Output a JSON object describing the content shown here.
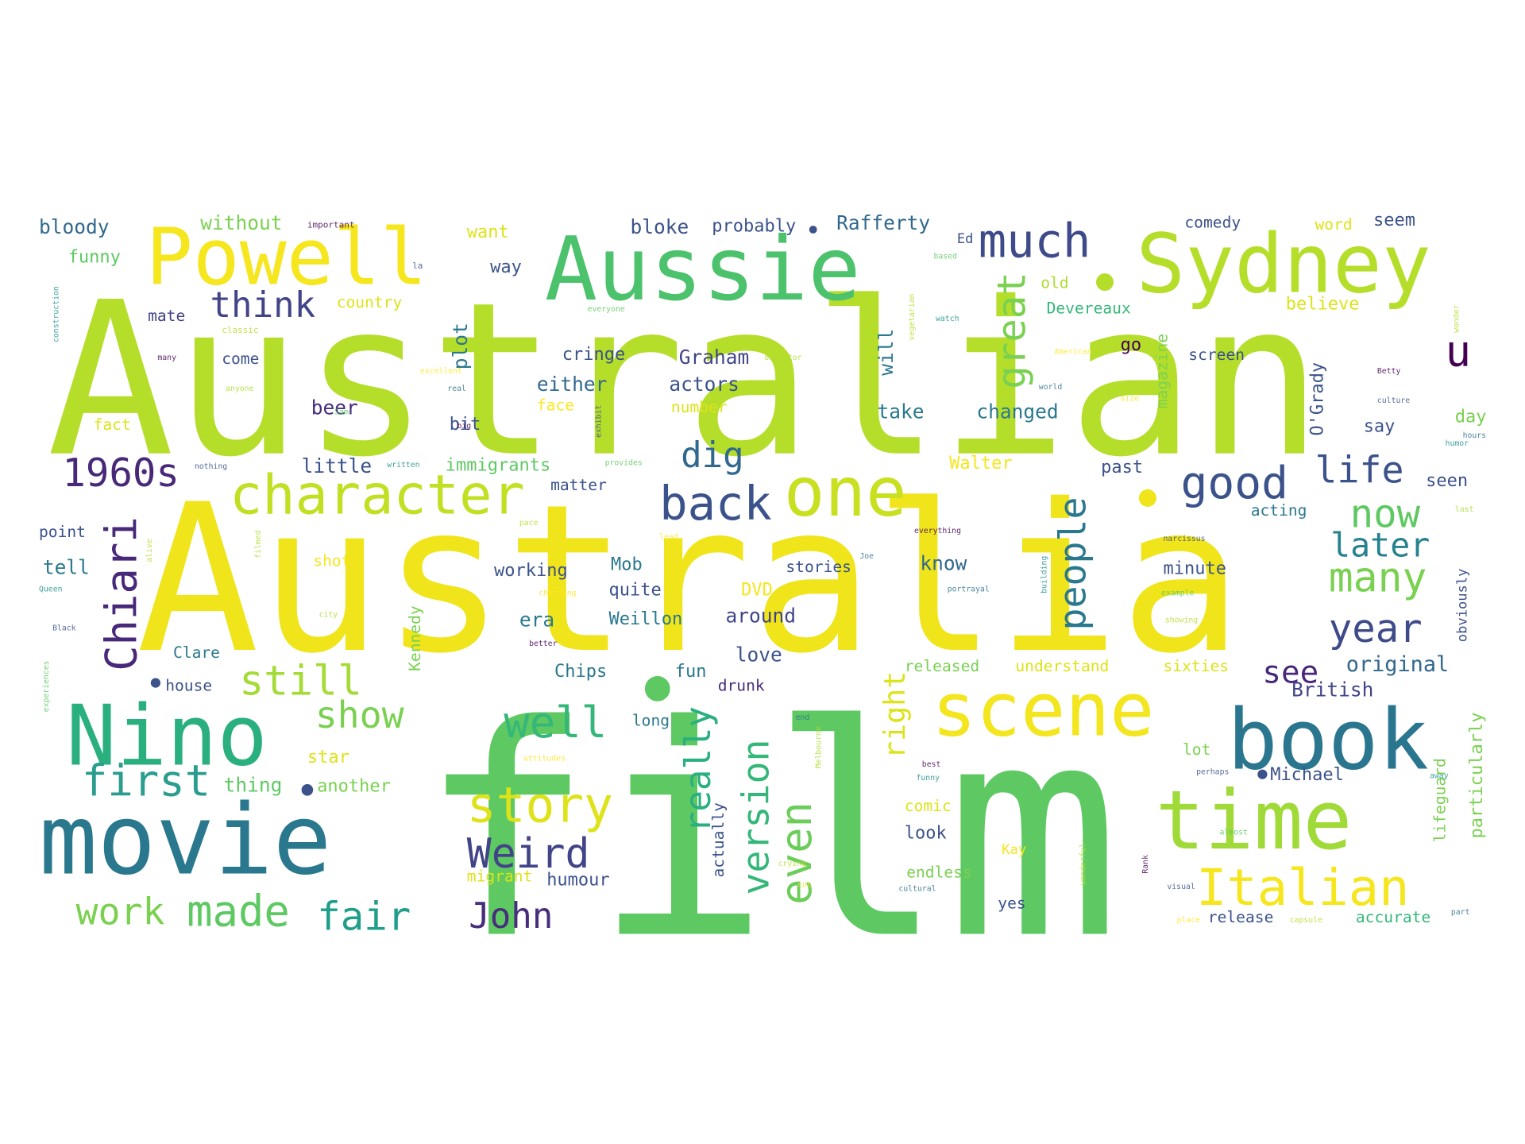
{
  "wordcloud": {
    "palette": [
      "#440154",
      "#3b528b",
      "#21918c",
      "#5ec962",
      "#b5de2b",
      "#fde725",
      "#2c728e",
      "#addc30"
    ],
    "words": [
      {
        "text": "Australian",
        "color": "#b5de2b"
      },
      {
        "text": "Australia",
        "color": "#f0e41a"
      },
      {
        "text": "film",
        "color": "#5ec962"
      },
      {
        "text": "Aussie",
        "color": "#4cc26c"
      },
      {
        "text": "Sydney",
        "color": "#b5de2b"
      },
      {
        "text": "Powell",
        "color": "#f5e61e"
      },
      {
        "text": "movie",
        "color": "#2a788e"
      },
      {
        "text": "Nino",
        "color": "#2ab07f"
      },
      {
        "text": "book",
        "color": "#2a768e"
      },
      {
        "text": "time",
        "color": "#a0da39"
      },
      {
        "text": "scene",
        "color": "#f3e51e"
      },
      {
        "text": "one",
        "color": "#c8e020"
      },
      {
        "text": "character",
        "color": "#c2df23"
      },
      {
        "text": "much",
        "color": "#3e4a89"
      },
      {
        "text": "Italian",
        "color": "#f5e61e"
      },
      {
        "text": "good",
        "color": "#3b528b"
      },
      {
        "text": "back",
        "color": "#3b528b"
      },
      {
        "text": "story",
        "color": "#dde318"
      },
      {
        "text": "Weird",
        "color": "#414487"
      },
      {
        "text": "made",
        "color": "#5ec962"
      },
      {
        "text": "fair",
        "color": "#1f9e89"
      },
      {
        "text": "work",
        "color": "#7ad151"
      },
      {
        "text": "John",
        "color": "#472d7b"
      },
      {
        "text": "first",
        "color": "#2a9d8f"
      },
      {
        "text": "well",
        "color": "#35b779"
      },
      {
        "text": "still",
        "color": "#a5db36"
      },
      {
        "text": "show",
        "color": "#7ad151"
      },
      {
        "text": "1960s",
        "color": "#482878"
      },
      {
        "text": "think",
        "color": "#414487"
      },
      {
        "text": "dig",
        "color": "#31688e"
      },
      {
        "text": "life",
        "color": "#3b528b"
      },
      {
        "text": "now",
        "color": "#5ec962"
      },
      {
        "text": "many",
        "color": "#7ad151"
      },
      {
        "text": "later",
        "color": "#26828e"
      },
      {
        "text": "year",
        "color": "#3e4a89"
      },
      {
        "text": "see",
        "color": "#482878"
      },
      {
        "text": "original",
        "color": "#31688e"
      },
      {
        "text": "British",
        "color": "#414487"
      },
      {
        "text": "u",
        "color": "#440154"
      },
      {
        "text": "Chiari",
        "color": "#482878"
      },
      {
        "text": "people",
        "color": "#2a788e"
      },
      {
        "text": "great",
        "color": "#7ad151"
      },
      {
        "text": "even",
        "color": "#6ccd5a"
      },
      {
        "text": "version",
        "color": "#35b779"
      },
      {
        "text": "really",
        "color": "#2ab07f"
      },
      {
        "text": "right",
        "color": "#dde318"
      },
      {
        "text": "bloody",
        "color": "#31688e"
      },
      {
        "text": "without",
        "color": "#7ad151"
      },
      {
        "text": "want",
        "color": "#dde318"
      },
      {
        "text": "bloke",
        "color": "#3b528b"
      },
      {
        "text": "probably",
        "color": "#3b528b"
      },
      {
        "text": "Rafferty",
        "color": "#31688e"
      },
      {
        "text": "comedy",
        "color": "#3b528b"
      },
      {
        "text": "word",
        "color": "#dde318"
      },
      {
        "text": "seem",
        "color": "#3b528b"
      },
      {
        "text": "funny",
        "color": "#5ec962"
      },
      {
        "text": "way",
        "color": "#3b528b"
      },
      {
        "text": "country",
        "color": "#dde318"
      },
      {
        "text": "mate",
        "color": "#414487"
      },
      {
        "text": "plot",
        "color": "#2a788e"
      },
      {
        "text": "old",
        "color": "#addc30"
      },
      {
        "text": "Devereaux",
        "color": "#35b779"
      },
      {
        "text": "believe",
        "color": "#dde318"
      },
      {
        "text": "come",
        "color": "#3b528b"
      },
      {
        "text": "cringe",
        "color": "#3b528b"
      },
      {
        "text": "Graham",
        "color": "#414487"
      },
      {
        "text": "go",
        "color": "#440154"
      },
      {
        "text": "screen",
        "color": "#3b528b"
      },
      {
        "text": "either",
        "color": "#31688e"
      },
      {
        "text": "actors",
        "color": "#3b528b"
      },
      {
        "text": "will",
        "color": "#2a788e"
      },
      {
        "text": "number",
        "color": "#dde318"
      },
      {
        "text": "beer",
        "color": "#472d7b"
      },
      {
        "text": "face",
        "color": "#fde725"
      },
      {
        "text": "take",
        "color": "#2a788e"
      },
      {
        "text": "changed",
        "color": "#2a788e"
      },
      {
        "text": "magazine",
        "color": "#7ad151"
      },
      {
        "text": "O'Grady",
        "color": "#3b528b"
      },
      {
        "text": "say",
        "color": "#3b528b"
      },
      {
        "text": "day",
        "color": "#7ad151"
      },
      {
        "text": "fact",
        "color": "#dde318"
      },
      {
        "text": "bit",
        "color": "#3b528b"
      },
      {
        "text": "little",
        "color": "#3b528b"
      },
      {
        "text": "immigrants",
        "color": "#5ec962"
      },
      {
        "text": "matter",
        "color": "#3b528b"
      },
      {
        "text": "Walter",
        "color": "#f5e61e"
      },
      {
        "text": "past",
        "color": "#3b528b"
      },
      {
        "text": "seen",
        "color": "#3b528b"
      },
      {
        "text": "acting",
        "color": "#2a788e"
      },
      {
        "text": "point",
        "color": "#3b528b"
      },
      {
        "text": "tell",
        "color": "#2a788e"
      },
      {
        "text": "shot",
        "color": "#f5e61e"
      },
      {
        "text": "working",
        "color": "#3b528b"
      },
      {
        "text": "Mob",
        "color": "#2a788e"
      },
      {
        "text": "stories",
        "color": "#3b528b"
      },
      {
        "text": "know",
        "color": "#31688e"
      },
      {
        "text": "minute",
        "color": "#3b528b"
      },
      {
        "text": "quite",
        "color": "#3b528b"
      },
      {
        "text": "DVD",
        "color": "#f5e61e"
      },
      {
        "text": "era",
        "color": "#2a788e"
      },
      {
        "text": "Weillon",
        "color": "#2a788e"
      },
      {
        "text": "around",
        "color": "#414487"
      },
      {
        "text": "Clare",
        "color": "#2a788e"
      },
      {
        "text": "love",
        "color": "#3b528b"
      },
      {
        "text": "Chips",
        "color": "#2a788e"
      },
      {
        "text": "fun",
        "color": "#2a788e"
      },
      {
        "text": "released",
        "color": "#7ad151"
      },
      {
        "text": "understand",
        "color": "#dde318"
      },
      {
        "text": "sixties",
        "color": "#dde318"
      },
      {
        "text": "house",
        "color": "#3b528b"
      },
      {
        "text": "drunk",
        "color": "#472d7b"
      },
      {
        "text": "long",
        "color": "#2a788e"
      },
      {
        "text": "star",
        "color": "#dde318"
      },
      {
        "text": "thing",
        "color": "#5ec962"
      },
      {
        "text": "another",
        "color": "#7ad151"
      },
      {
        "text": "lot",
        "color": "#7ad151"
      },
      {
        "text": "Michael",
        "color": "#3b528b"
      },
      {
        "text": "comic",
        "color": "#dde318"
      },
      {
        "text": "look",
        "color": "#3b528b"
      },
      {
        "text": "actually",
        "color": "#3b528b"
      },
      {
        "text": "migrant",
        "color": "#dde318"
      },
      {
        "text": "humour",
        "color": "#3b528b"
      },
      {
        "text": "endless",
        "color": "#7ad151"
      },
      {
        "text": "yes",
        "color": "#3b528b"
      },
      {
        "text": "release",
        "color": "#3b528b"
      },
      {
        "text": "accurate",
        "color": "#35b779"
      },
      {
        "text": "particularly",
        "color": "#7ad151"
      },
      {
        "text": "lifeguard",
        "color": "#7ad151"
      },
      {
        "text": "obviously",
        "color": "#3b528b"
      },
      {
        "text": "Kennedy",
        "color": "#7ad151"
      },
      {
        "text": "Kay",
        "color": "#f5e61e"
      },
      {
        "text": "Ed",
        "color": "#3b528b"
      }
    ],
    "small_words": [
      "important",
      "la",
      "construction",
      "everyone",
      "classic",
      "excellent",
      "real",
      "anyone",
      "big",
      "nothing",
      "written",
      "provides",
      "pace",
      "lead",
      "Joe",
      "filmed",
      "everything",
      "narcissus",
      "building",
      "example",
      "showing",
      "charming",
      "portrayal",
      "city",
      "better",
      "Black",
      "Queen",
      "experiences",
      "alive",
      "attitudes",
      "end",
      "Melbourne",
      "best",
      "perhaps",
      "funny",
      "almost",
      "crying",
      "cut",
      "cultural",
      "wonderful",
      "Rank",
      "visual",
      "away",
      "cop",
      "capsule",
      "place",
      "part",
      "last",
      "Betty",
      "culture",
      "humor",
      "based",
      "vegetarian",
      "American",
      "world",
      "director",
      "many",
      "exhibit",
      "watch",
      "Sam",
      "wonder",
      "size",
      "hours"
    ]
  }
}
